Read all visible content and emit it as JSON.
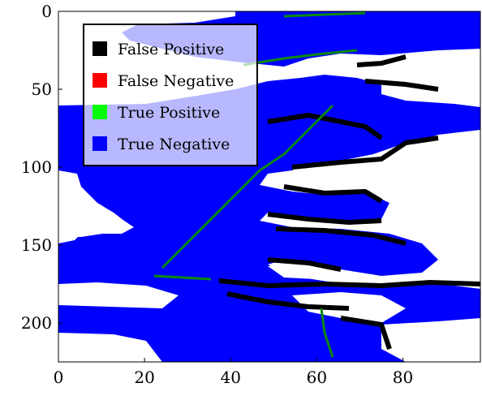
{
  "chart_data": {
    "type": "heatmap",
    "title": "",
    "xlabel": "",
    "ylabel": "",
    "xlim": [
      0,
      98
    ],
    "ylim": [
      225,
      0
    ],
    "x_ticks": [
      0,
      20,
      40,
      60,
      80
    ],
    "y_ticks": [
      0,
      50,
      100,
      150,
      200
    ],
    "grid": false,
    "legend_placement": "top-left",
    "classes": [
      {
        "name": "False Positive",
        "color": "#000000"
      },
      {
        "name": "False Negative",
        "color": "#ff0000"
      },
      {
        "name": "True Positive",
        "color": "#00ff00"
      },
      {
        "name": "True Negative",
        "color": "#0000ff"
      }
    ],
    "background_color": "#ffffff"
  }
}
